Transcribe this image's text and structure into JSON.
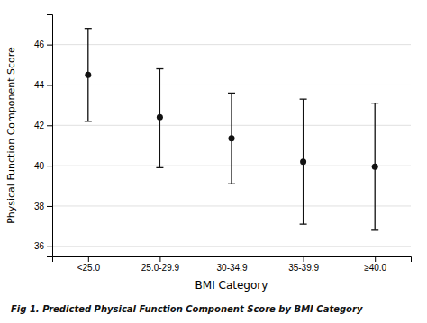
{
  "chart_data": {
    "type": "errorbar",
    "caption": "Fig 1.  Predicted Physical Function Component Score by BMI Category",
    "xlabel": "BMI Category",
    "ylabel": "Physical Function Component Score",
    "categories": [
      "<25.0",
      "25.0-29.9",
      "30-34.9",
      "35-39.9",
      "≥40.0"
    ],
    "values": [
      44.5,
      42.4,
      41.35,
      40.2,
      39.95
    ],
    "upper": [
      46.8,
      44.8,
      43.6,
      43.3,
      43.1
    ],
    "lower": [
      42.2,
      39.9,
      39.1,
      37.1,
      36.8
    ],
    "color": "#111111",
    "marker": "circle",
    "ylim": [
      35.5,
      47.5
    ],
    "yticks": [
      36,
      38,
      40,
      42,
      44,
      46
    ],
    "grid": true
  }
}
